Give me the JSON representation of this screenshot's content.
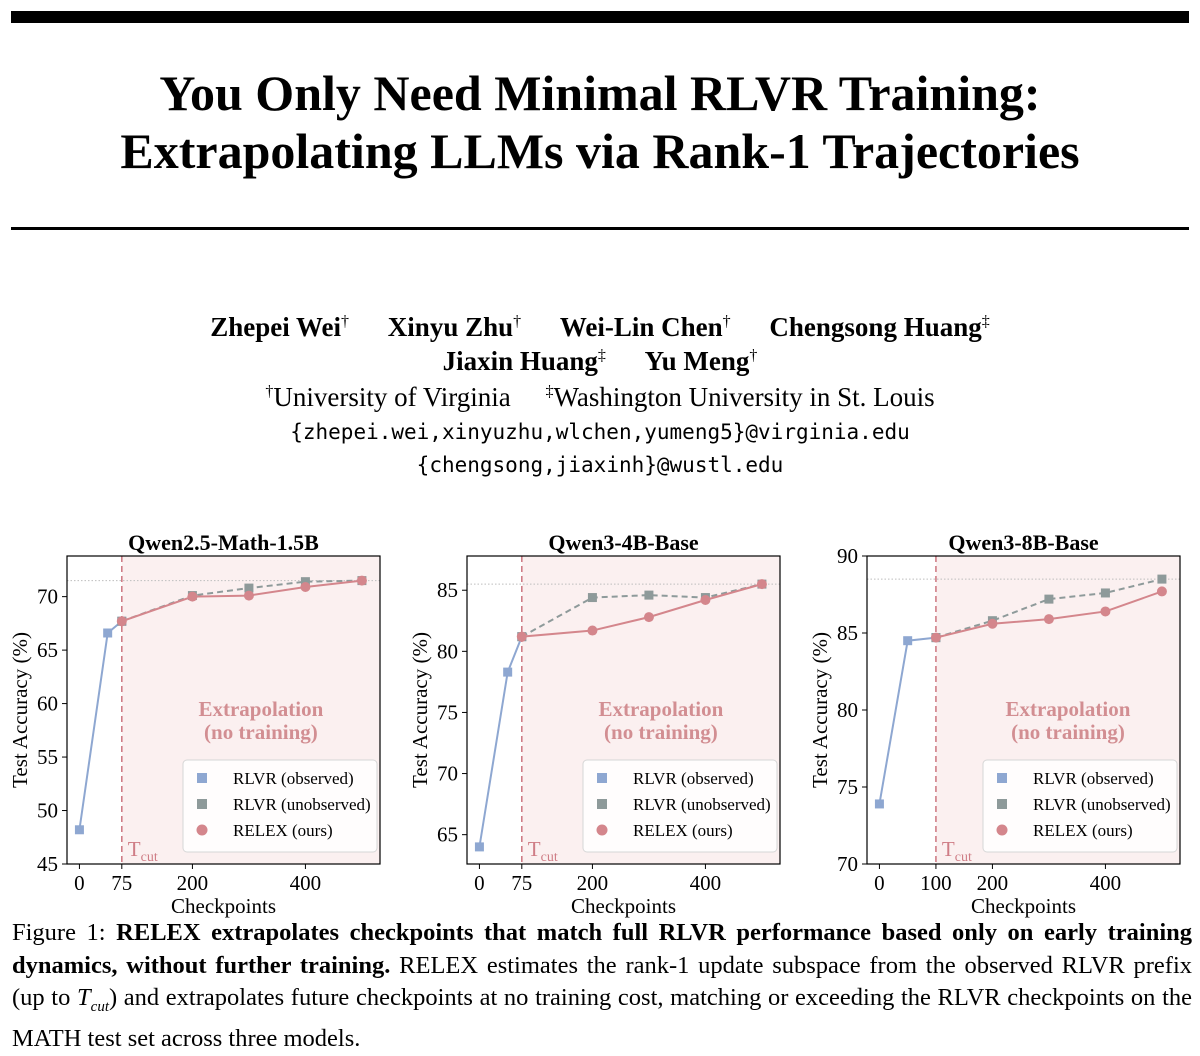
{
  "paper": {
    "title_line1": "You Only Need Minimal RLVR Training:",
    "title_line2": "Extrapolating LLMs via Rank-1 Trajectories",
    "authors": [
      {
        "name": "Zhepei Wei",
        "mark": "†"
      },
      {
        "name": "Xinyu Zhu",
        "mark": "†"
      },
      {
        "name": "Wei-Lin Chen",
        "mark": "†"
      },
      {
        "name": "Chengsong Huang",
        "mark": "‡"
      },
      {
        "name": "Jiaxin Huang",
        "mark": "‡"
      },
      {
        "name": "Yu Meng",
        "mark": "†"
      }
    ],
    "affiliations": [
      {
        "mark": "†",
        "name": "University of Virginia"
      },
      {
        "mark": "‡",
        "name": "Washington University in St. Louis"
      }
    ],
    "emails": [
      "{zhepei.wei,xinyuzhu,wlchen,yumeng5}@virginia.edu",
      "{chengsong,jiaxinh}@wustl.edu"
    ],
    "caption": {
      "label": "Figure 1:",
      "bold": "RELEX extrapolates checkpoints that match full RLVR performance based only on early training dynamics, without further training.",
      "text_before": "RELEX estimates the rank-1 update subspace from the observed RLVR prefix (up to",
      "tcut_T": "T",
      "tcut_sub": "cut",
      "text_after": ") and extrapolates future checkpoints at no training cost, matching or exceeding the RLVR checkpoints on the MATH test set across three models."
    }
  },
  "colors": {
    "observed": "#8ea7d1",
    "unobserved": "#8e9a9a",
    "relex": "#d4868c",
    "tcut_line": "#cf7d86",
    "shade": "#fbf0f0",
    "annotation": "#d28e92"
  },
  "chart_data": [
    {
      "type": "line",
      "title": "Qwen2.5-Math-1.5B",
      "xlabel": "Checkpoints",
      "ylabel": "Test Accuracy (%)",
      "xticks": [
        0,
        75,
        200,
        400
      ],
      "yticks": [
        45,
        50,
        55,
        60,
        65,
        70
      ],
      "xlim": [
        -22,
        532
      ],
      "ylim": [
        45,
        73.8
      ],
      "t_cut": 75,
      "t_cut_label": "T",
      "t_cut_sub": "cut",
      "ref_y": 71.5,
      "annotation_line1": "Extrapolation",
      "annotation_line2": "(no training)",
      "legend": [
        "RLVR (observed)",
        "RLVR (unobserved)",
        "RELEX (ours)"
      ],
      "legend_position": "lower right",
      "series": [
        {
          "name": "RLVR (observed)",
          "points": [
            [
              0,
              48.2
            ],
            [
              50,
              66.6
            ],
            [
              75,
              67.7
            ]
          ]
        },
        {
          "name": "RLVR (unobserved)",
          "points": [
            [
              75,
              67.7
            ],
            [
              200,
              70.1
            ],
            [
              300,
              70.8
            ],
            [
              400,
              71.4
            ],
            [
              500,
              71.5
            ]
          ]
        },
        {
          "name": "RELEX (ours)",
          "points": [
            [
              75,
              67.7
            ],
            [
              200,
              70.0
            ],
            [
              300,
              70.1
            ],
            [
              400,
              70.9
            ],
            [
              500,
              71.5
            ]
          ]
        }
      ]
    },
    {
      "type": "line",
      "title": "Qwen3-4B-Base",
      "xlabel": "Checkpoints",
      "ylabel": "Test Accuracy (%)",
      "xticks": [
        0,
        75,
        200,
        400
      ],
      "yticks": [
        65,
        70,
        75,
        80,
        85
      ],
      "xlim": [
        -22,
        532
      ],
      "ylim": [
        62.6,
        87.8
      ],
      "t_cut": 75,
      "t_cut_label": "T",
      "t_cut_sub": "cut",
      "ref_y": 85.5,
      "annotation_line1": "Extrapolation",
      "annotation_line2": "(no training)",
      "legend": [
        "RLVR (observed)",
        "RLVR (unobserved)",
        "RELEX (ours)"
      ],
      "legend_position": "lower right",
      "series": [
        {
          "name": "RLVR (observed)",
          "points": [
            [
              0,
              64.0
            ],
            [
              50,
              78.3
            ],
            [
              75,
              81.2
            ]
          ]
        },
        {
          "name": "RLVR (unobserved)",
          "points": [
            [
              75,
              81.2
            ],
            [
              200,
              84.4
            ],
            [
              300,
              84.6
            ],
            [
              400,
              84.4
            ],
            [
              500,
              85.5
            ]
          ]
        },
        {
          "name": "RELEX (ours)",
          "points": [
            [
              75,
              81.2
            ],
            [
              200,
              81.7
            ],
            [
              300,
              82.8
            ],
            [
              400,
              84.2
            ],
            [
              500,
              85.5
            ]
          ]
        }
      ]
    },
    {
      "type": "line",
      "title": "Qwen3-8B-Base",
      "xlabel": "Checkpoints",
      "ylabel": "Test Accuracy (%)",
      "xticks": [
        0,
        100,
        200,
        400
      ],
      "yticks": [
        70,
        75,
        80,
        85,
        90
      ],
      "xlim": [
        -22,
        532
      ],
      "ylim": [
        70,
        90
      ],
      "t_cut": 100,
      "t_cut_label": "T",
      "t_cut_sub": "cut",
      "ref_y": 88.5,
      "annotation_line1": "Extrapolation",
      "annotation_line2": "(no training)",
      "legend": [
        "RLVR (observed)",
        "RLVR (unobserved)",
        "RELEX (ours)"
      ],
      "legend_position": "lower right",
      "series": [
        {
          "name": "RLVR (observed)",
          "points": [
            [
              0,
              73.9
            ],
            [
              50,
              84.5
            ],
            [
              100,
              84.7
            ]
          ]
        },
        {
          "name": "RLVR (unobserved)",
          "points": [
            [
              100,
              84.7
            ],
            [
              200,
              85.8
            ],
            [
              300,
              87.2
            ],
            [
              400,
              87.6
            ],
            [
              500,
              88.5
            ]
          ]
        },
        {
          "name": "RELEX (ours)",
          "points": [
            [
              100,
              84.7
            ],
            [
              200,
              85.6
            ],
            [
              300,
              85.9
            ],
            [
              400,
              86.4
            ],
            [
              500,
              87.7
            ]
          ]
        }
      ]
    }
  ]
}
